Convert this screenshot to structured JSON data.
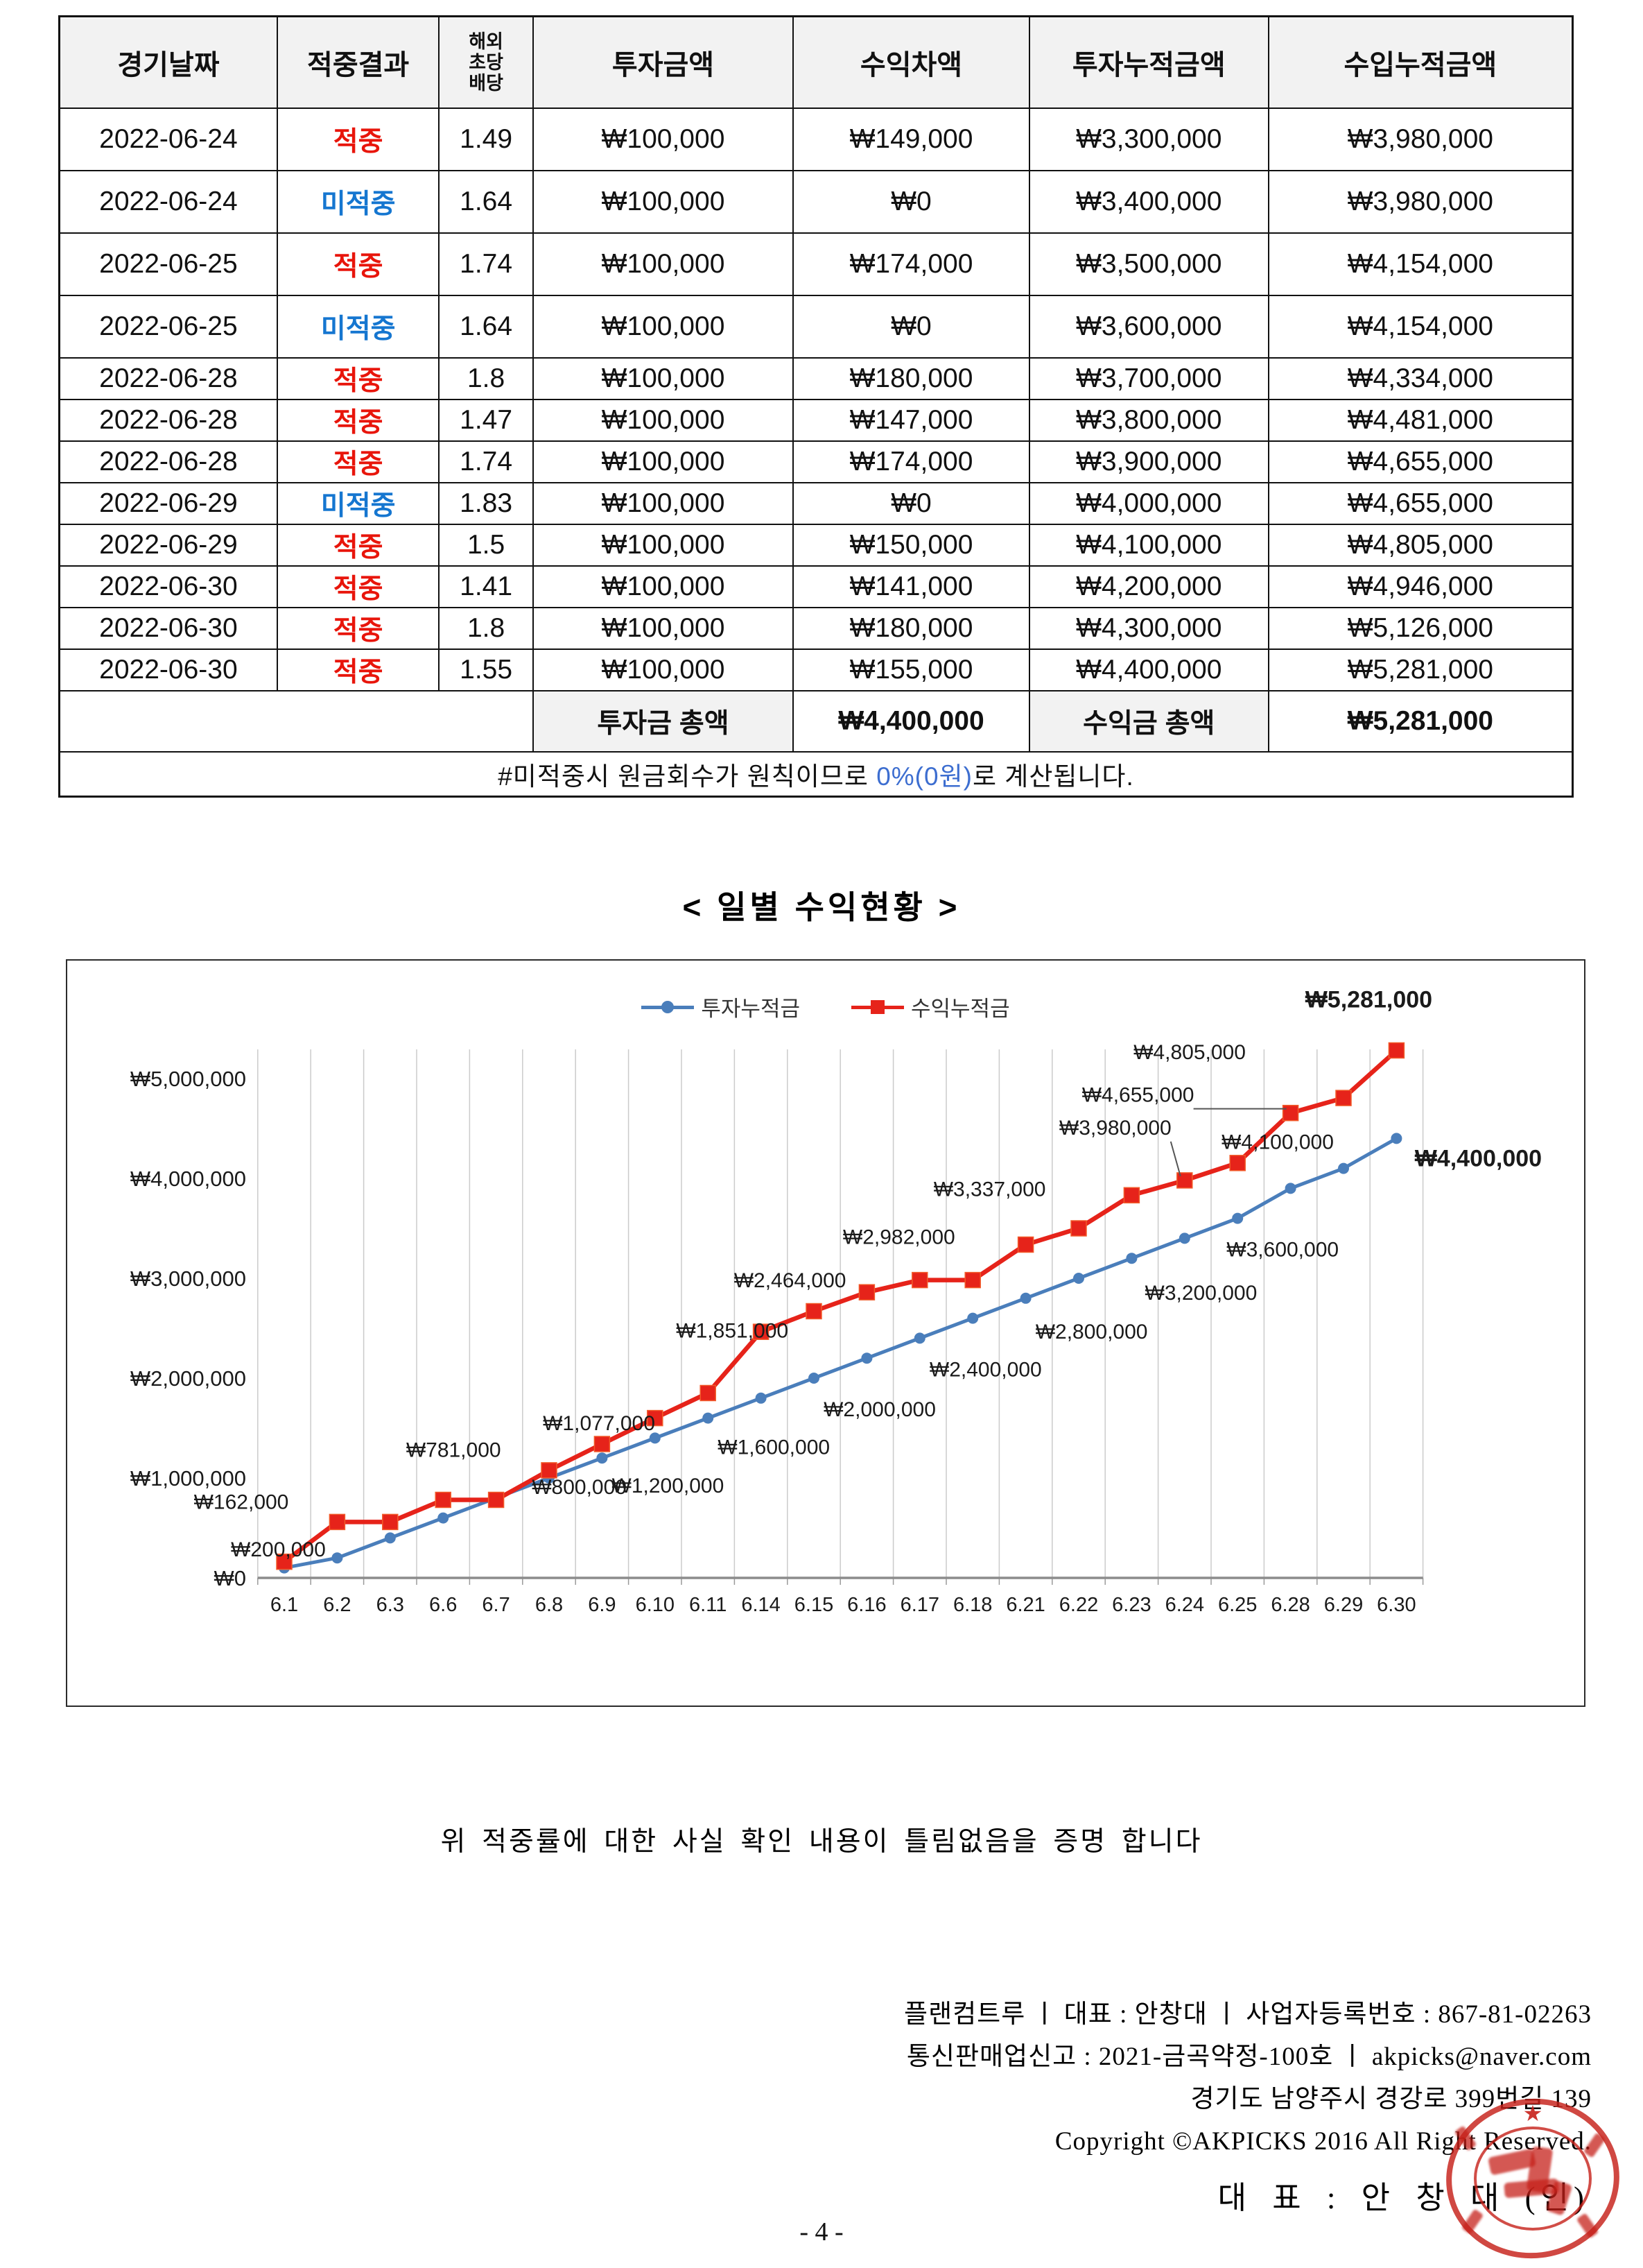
{
  "table": {
    "headers": [
      "경기날짜",
      "적중결과",
      "해외\n초당\n배당",
      "투자금액",
      "수익차액",
      "투자누적금액",
      "수입누적금액"
    ],
    "rows": [
      {
        "date": "2022-06-24",
        "result": "적중",
        "miss": false,
        "odds": "1.49",
        "invest": "₩100,000",
        "profit": "₩149,000",
        "cum_invest": "₩3,300,000",
        "cum_income": "₩3,980,000"
      },
      {
        "date": "2022-06-24",
        "result": "미적중",
        "miss": true,
        "odds": "1.64",
        "invest": "₩100,000",
        "profit": "₩0",
        "cum_invest": "₩3,400,000",
        "cum_income": "₩3,980,000"
      },
      {
        "date": "2022-06-25",
        "result": "적중",
        "miss": false,
        "odds": "1.74",
        "invest": "₩100,000",
        "profit": "₩174,000",
        "cum_invest": "₩3,500,000",
        "cum_income": "₩4,154,000"
      },
      {
        "date": "2022-06-25",
        "result": "미적중",
        "miss": true,
        "odds": "1.64",
        "invest": "₩100,000",
        "profit": "₩0",
        "cum_invest": "₩3,600,000",
        "cum_income": "₩4,154,000"
      },
      {
        "date": "2022-06-28",
        "result": "적중",
        "miss": false,
        "odds": "1.8",
        "invest": "₩100,000",
        "profit": "₩180,000",
        "cum_invest": "₩3,700,000",
        "cum_income": "₩4,334,000"
      },
      {
        "date": "2022-06-28",
        "result": "적중",
        "miss": false,
        "odds": "1.47",
        "invest": "₩100,000",
        "profit": "₩147,000",
        "cum_invest": "₩3,800,000",
        "cum_income": "₩4,481,000"
      },
      {
        "date": "2022-06-28",
        "result": "적중",
        "miss": false,
        "odds": "1.74",
        "invest": "₩100,000",
        "profit": "₩174,000",
        "cum_invest": "₩3,900,000",
        "cum_income": "₩4,655,000"
      },
      {
        "date": "2022-06-29",
        "result": "미적중",
        "miss": true,
        "odds": "1.83",
        "invest": "₩100,000",
        "profit": "₩0",
        "cum_invest": "₩4,000,000",
        "cum_income": "₩4,655,000"
      },
      {
        "date": "2022-06-29",
        "result": "적중",
        "miss": false,
        "odds": "1.5",
        "invest": "₩100,000",
        "profit": "₩150,000",
        "cum_invest": "₩4,100,000",
        "cum_income": "₩4,805,000"
      },
      {
        "date": "2022-06-30",
        "result": "적중",
        "miss": false,
        "odds": "1.41",
        "invest": "₩100,000",
        "profit": "₩141,000",
        "cum_invest": "₩4,200,000",
        "cum_income": "₩4,946,000"
      },
      {
        "date": "2022-06-30",
        "result": "적중",
        "miss": false,
        "odds": "1.8",
        "invest": "₩100,000",
        "profit": "₩180,000",
        "cum_invest": "₩4,300,000",
        "cum_income": "₩5,126,000"
      },
      {
        "date": "2022-06-30",
        "result": "적중",
        "miss": false,
        "odds": "1.55",
        "invest": "₩100,000",
        "profit": "₩155,000",
        "cum_invest": "₩4,400,000",
        "cum_income": "₩5,281,000"
      }
    ],
    "summary": {
      "invest_label": "투자금 총액",
      "invest_total": "₩4,400,000",
      "profit_label": "수익금 총액",
      "profit_total": "₩5,281,000"
    },
    "note": {
      "pre": "#미적중시 원금회수가 원칙이므로 ",
      "blue": "0%(0원)",
      "post": "로 계산됩니다."
    }
  },
  "chart_title": "< 일별 수익현황 >",
  "chart_data": {
    "type": "line",
    "title": "< 일별 수익현황 >",
    "categories": [
      "6.1",
      "6.2",
      "6.3",
      "6.6",
      "6.7",
      "6.8",
      "6.9",
      "6.10",
      "6.11",
      "6.14",
      "6.15",
      "6.16",
      "6.17",
      "6.18",
      "6.21",
      "6.22",
      "6.23",
      "6.24",
      "6.25",
      "6.28",
      "6.29",
      "6.30"
    ],
    "ylim": [
      0,
      5500000
    ],
    "grid": "vertical-only",
    "legend_position": "top-center",
    "yticks": [
      {
        "v": 0,
        "label": "₩0"
      },
      {
        "v": 1000000,
        "label": "₩1,000,000"
      },
      {
        "v": 2000000,
        "label": "₩2,000,000"
      },
      {
        "v": 3000000,
        "label": "₩3,000,000"
      },
      {
        "v": 4000000,
        "label": "₩4,000,000"
      },
      {
        "v": 5000000,
        "label": "₩5,000,000"
      }
    ],
    "series": [
      {
        "name": "투자누적금",
        "color": "#4a7ebb",
        "marker": "circle",
        "values": [
          100000,
          200000,
          400000,
          600000,
          800000,
          1000000,
          1200000,
          1400000,
          1600000,
          1800000,
          2000000,
          2200000,
          2400000,
          2600000,
          2800000,
          3000000,
          3200000,
          3400000,
          3600000,
          3900000,
          4100000,
          4400000
        ],
        "labels": [
          {
            "i": 1,
            "text": "₩200,000",
            "dx": -85,
            "dy": -2
          },
          {
            "i": 4,
            "text": "₩800,000",
            "dx": 120,
            "dy": -6
          },
          {
            "i": 6,
            "text": "₩1,200,000",
            "dx": 95,
            "dy": 50
          },
          {
            "i": 8,
            "text": "₩1,600,000",
            "dx": 95,
            "dy": 52
          },
          {
            "i": 10,
            "text": "₩2,000,000",
            "dx": 95,
            "dy": 55
          },
          {
            "i": 12,
            "text": "₩2,400,000",
            "dx": 95,
            "dy": 55
          },
          {
            "i": 14,
            "text": "₩2,800,000",
            "dx": 95,
            "dy": 58
          },
          {
            "i": 16,
            "text": "₩3,200,000",
            "dx": 100,
            "dy": 60
          },
          {
            "i": 18,
            "text": "₩3,600,000",
            "dx": 65,
            "dy": 55
          },
          {
            "i": 20,
            "text": "₩4,100,000",
            "dx": -95,
            "dy": -28
          },
          {
            "i": 21,
            "text": "₩4,400,000",
            "dx": 118,
            "dy": 40,
            "bold": true
          }
        ]
      },
      {
        "name": "수익누적금",
        "color": "#e6231a",
        "marker": "square",
        "values": [
          162000,
          560000,
          560000,
          781000,
          781000,
          1077000,
          1340000,
          1600000,
          1851000,
          2464000,
          2670000,
          2860000,
          2982000,
          2982000,
          3337000,
          3500000,
          3831000,
          3980000,
          4154000,
          4655000,
          4805000,
          5281000
        ],
        "labels": [
          {
            "i": 0,
            "text": "₩162,000",
            "dx": -62,
            "dy": -76
          },
          {
            "i": 3,
            "text": "₩781,000",
            "dx": 15,
            "dy": -62
          },
          {
            "i": 5,
            "text": "₩1,077,000",
            "dx": 72,
            "dy": -58
          },
          {
            "i": 8,
            "text": "₩1,851,000",
            "dx": 35,
            "dy": -80
          },
          {
            "i": 9,
            "text": "₩2,464,000",
            "dx": 42,
            "dy": -64
          },
          {
            "i": 12,
            "text": "₩2,982,000",
            "dx": -30,
            "dy": -52
          },
          {
            "i": 14,
            "text": "₩3,337,000",
            "dx": -52,
            "dy": -70
          },
          {
            "i": 17,
            "text": "₩3,980,000",
            "dx": -100,
            "dy": -66,
            "leader": true
          },
          {
            "i": 19,
            "text": "₩4,655,000",
            "dx": -220,
            "dy": -16,
            "leader": true
          },
          {
            "i": 20,
            "text": "₩4,805,000",
            "dx": -222,
            "dy": -56
          },
          {
            "i": 21,
            "text": "₩5,281,000",
            "dx": -40,
            "dy": -62,
            "bold": true
          }
        ]
      }
    ]
  },
  "statement": "위 적중률에 대한 사실 확인 내용이 틀림없음을 증명 합니다",
  "footer": {
    "lines": [
      "플랜컴트루 ㅣ 대표 : 안창대 ㅣ 사업자등록번호 : 867-81-02263",
      "통신판매업신고 : 2021-금곡약정-100호 ㅣ akpicks@naver.com",
      "경기도 남양주시 경강로 399번길 139",
      "Copyright ©AKPICKS 2016 All Right Reserved."
    ]
  },
  "signature": "대 표 : 안 창 대 (인)",
  "page_number": "- 4 -",
  "colors": {
    "hit_red": "#e8150b",
    "miss_blue": "#1576d0",
    "note_blue": "#3d6ed0",
    "series_invest_blue": "#4a7ebb",
    "series_profit_red": "#e6231a",
    "header_bg": "#f2f2f2"
  }
}
